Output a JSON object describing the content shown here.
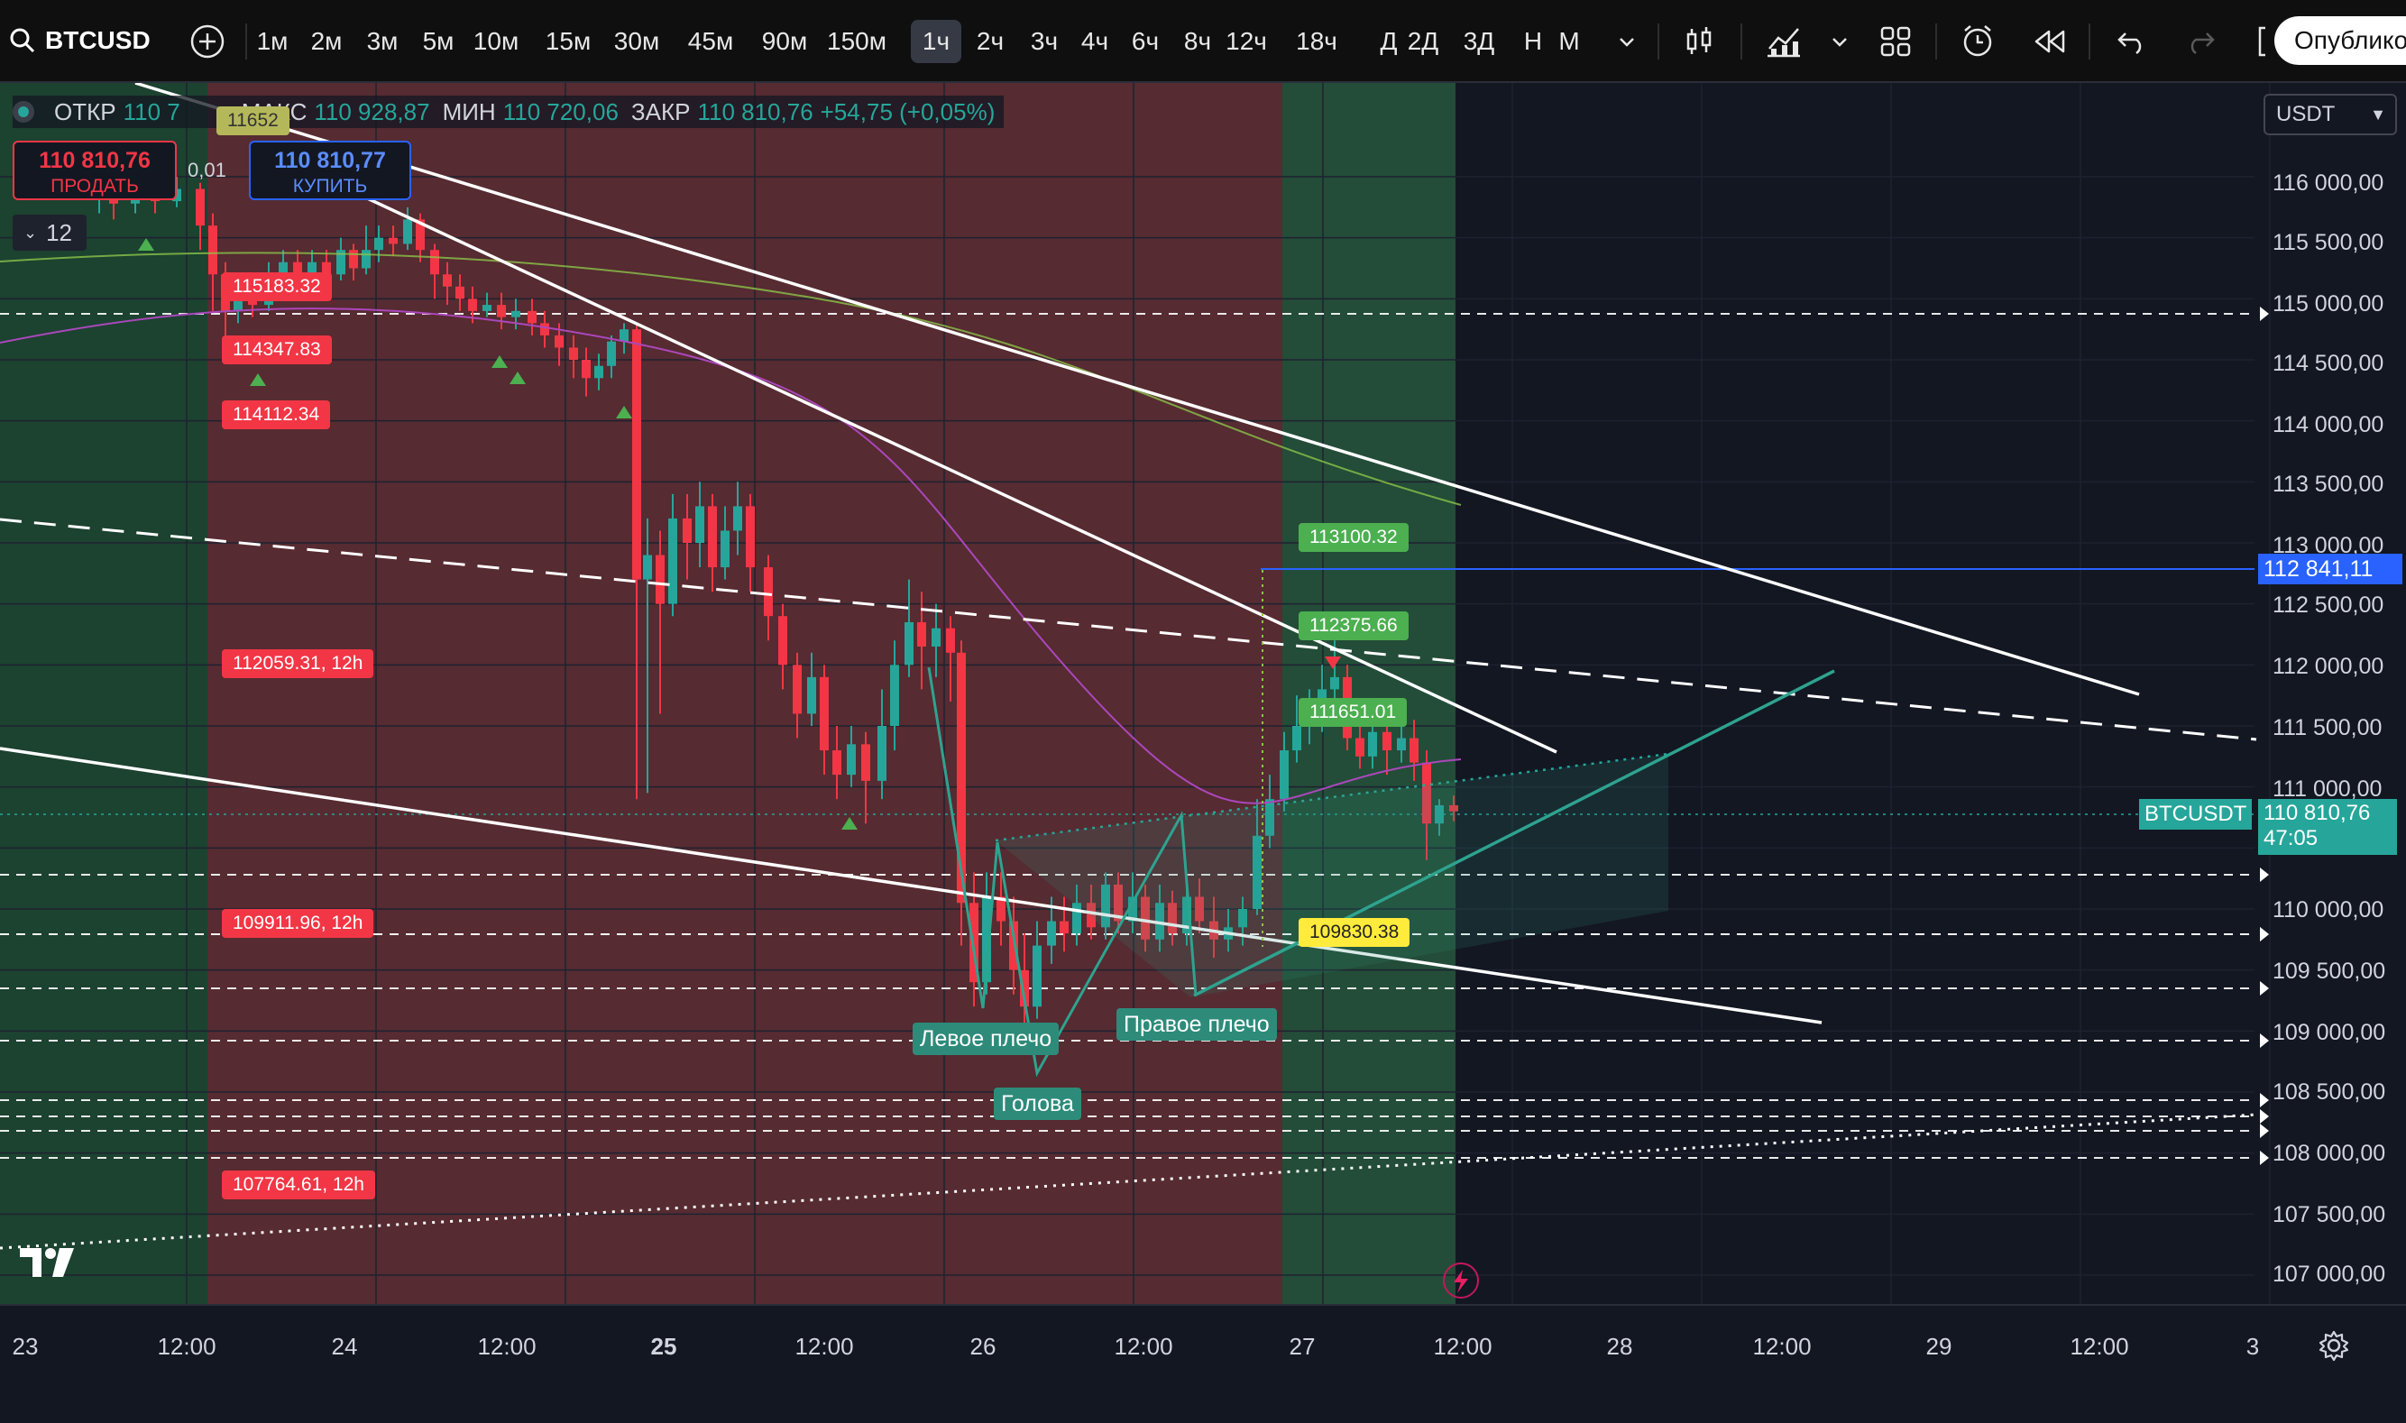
{
  "toolbar": {
    "symbol": "BTCUSD",
    "timeframes": [
      "1м",
      "2м",
      "3м",
      "5м",
      "10м",
      "15м",
      "30м",
      "45м",
      "90м",
      "150м",
      "1ч",
      "2ч",
      "3ч",
      "4ч",
      "6ч",
      "8ч",
      "12ч",
      "18ч",
      "Д",
      "2Д",
      "3Д",
      "Н",
      "М"
    ],
    "active_timeframe": "1ч",
    "publish_label": "Опублико"
  },
  "legend": {
    "open_label": "ОТКР",
    "open_value": "110 7",
    "high_label": "МАКС",
    "high_value": "110 928,87",
    "low_label": "МИН",
    "low_value": "110 720,06",
    "close_label": "ЗАКР",
    "close_value": "110 810,76",
    "change": "+54,75 (+0,05%)"
  },
  "trade": {
    "sell_price": "110 810,76",
    "sell_label": "ПРОДАТЬ",
    "buy_price": "110 810,77",
    "buy_label": "КУПИТЬ",
    "spread": "0,01",
    "quantity": "12"
  },
  "currency": "USDT",
  "price_axis": {
    "ticks": [
      "116 000,00",
      "115 500,00",
      "115 000,00",
      "114 500,00",
      "114 000,00",
      "113 500,00",
      "113 000,00",
      "112 500,00",
      "112 000,00",
      "111 500,00",
      "111 000,00",
      "110 000,00",
      "109 500,00",
      "109 000,00",
      "108 500,00",
      "108 000,00",
      "107 500,00",
      "107 000,00"
    ],
    "alert_price": "112 841,11",
    "last_symbol": "BTCUSDT",
    "last_price": "110 810,76",
    "countdown": "47:05"
  },
  "time_axis": {
    "ticks": [
      "23",
      "12:00",
      "24",
      "12:00",
      "25",
      "12:00",
      "26",
      "12:00",
      "27",
      "12:00",
      "28",
      "12:00",
      "29",
      "12:00",
      "3"
    ]
  },
  "levels": {
    "red": [
      "115183.32",
      "114347.83",
      "114112.34",
      "112059.31, 12h",
      "109911.96, 12h",
      "107764.61, 12h"
    ],
    "green": [
      "113100.32",
      "112375.66",
      "111651.01"
    ],
    "yellow": "109830.38",
    "top_partial": "11652"
  },
  "pattern": {
    "left_shoulder": "Левое плечо",
    "head": "Голова",
    "right_shoulder": "Правое плечо"
  },
  "colors": {
    "up": "#26a69a",
    "down": "#f23645",
    "bg": "#131722",
    "session_green": "#2e5a3e",
    "session_red": "#5a2c33"
  }
}
